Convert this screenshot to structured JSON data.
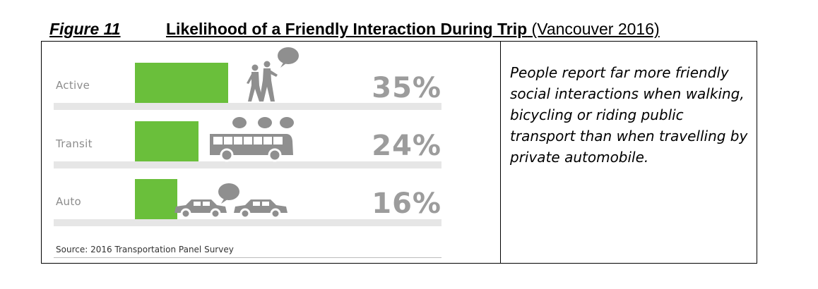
{
  "figure": {
    "number": "Figure 11",
    "title": "Likelihood of a Friendly Interaction During Trip",
    "subtitle": "(Vancouver 2016)"
  },
  "chart_data": {
    "type": "bar",
    "orientation": "horizontal",
    "categories": [
      "Active",
      "Transit",
      "Auto"
    ],
    "values": [
      35,
      24,
      16
    ],
    "value_labels": [
      "35%",
      "24%",
      "16%"
    ],
    "unit": "%",
    "xlim": [
      0,
      100
    ],
    "grid": false,
    "bar_color": "#6abf3b",
    "icons": [
      "walking-couple-icon",
      "bus-icon",
      "cars-icon"
    ],
    "source": "Source: 2016 Transportation Panel Survey"
  },
  "note": "People report far more friendly social interactions when walking, bicycling or riding public transport than when travelling by private automobile."
}
